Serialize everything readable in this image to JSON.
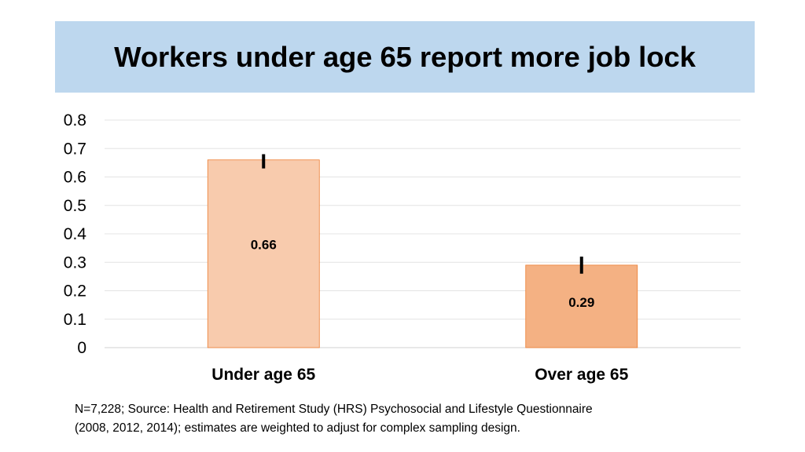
{
  "title": "Workers under age 65 report more job lock",
  "chart_data": {
    "type": "bar",
    "title": "Workers under age 65 report more job lock",
    "categories": [
      "Under age 65",
      "Over age 65"
    ],
    "values": [
      0.66,
      0.29
    ],
    "data_labels": [
      "0.66",
      "0.29"
    ],
    "error_bars": [
      [
        0.63,
        0.68
      ],
      [
        0.26,
        0.32
      ]
    ],
    "ylim": [
      0,
      0.8
    ],
    "yticks": [
      "0",
      "0.1",
      "0.2",
      "0.3",
      "0.4",
      "0.5",
      "0.6",
      "0.7",
      "0.8"
    ],
    "grid": true,
    "colors": [
      "#f8cbad",
      "#f4b183"
    ],
    "bar_border_color": "#ed7d31",
    "error_bar_color": "#000000"
  },
  "footnote": {
    "line1": "N=7,228; Source: Health and Retirement Study (HRS) Psychosocial and Lifestyle Questionnaire",
    "line2": "(2008, 2012, 2014); estimates are weighted to adjust for complex sampling design."
  }
}
